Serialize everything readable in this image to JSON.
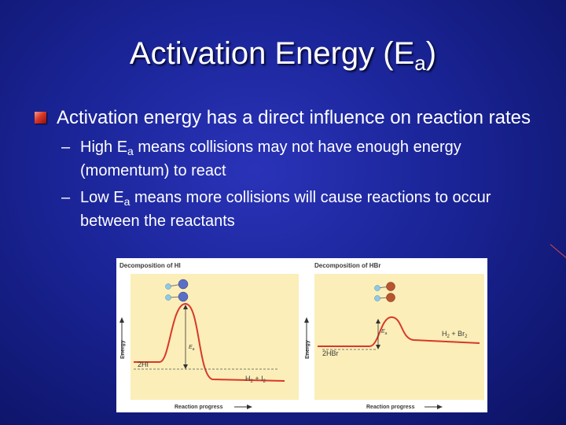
{
  "slide": {
    "title": {
      "text": "Activation Energy (E",
      "sub": "a",
      "close": ")"
    },
    "bullet": {
      "text": "Activation energy has a direct influence on reaction rates",
      "sub_items": [
        {
          "prefix": "High E",
          "sub": "a",
          "text": " means collisions may not have enough energy (momentum) to react"
        },
        {
          "prefix": "Low E",
          "sub": "a",
          "text": " means more collisions will cause reactions to occur between the reactants"
        }
      ]
    }
  },
  "figure": {
    "panels": [
      {
        "title": "Decomposition of HI",
        "y_label": "Energy",
        "x_label": "Reaction progress",
        "ea_label": "E",
        "ea_sub": "a",
        "reactant_label": "2HI",
        "product_label": {
          "text": "H",
          "s1": "2",
          "mid": " + I",
          "s2": "2"
        },
        "atom_colors": [
          "#5b6fc4",
          "#8ecae6"
        ]
      },
      {
        "title": "Decomposition of HBr",
        "y_label": "Energy",
        "x_label": "Reaction progress",
        "ea_label": "E",
        "ea_sub": "a",
        "reactant_label": "2HBr",
        "product_label": {
          "text": "H",
          "s1": "2",
          "mid": " + Br",
          "s2": "2"
        },
        "atom_colors": [
          "#b8552e",
          "#8ecae6"
        ]
      }
    ],
    "colors": {
      "panel_bg": "#fbeeb8",
      "curve": "#d8382a",
      "text": "#3a3a3a"
    }
  }
}
